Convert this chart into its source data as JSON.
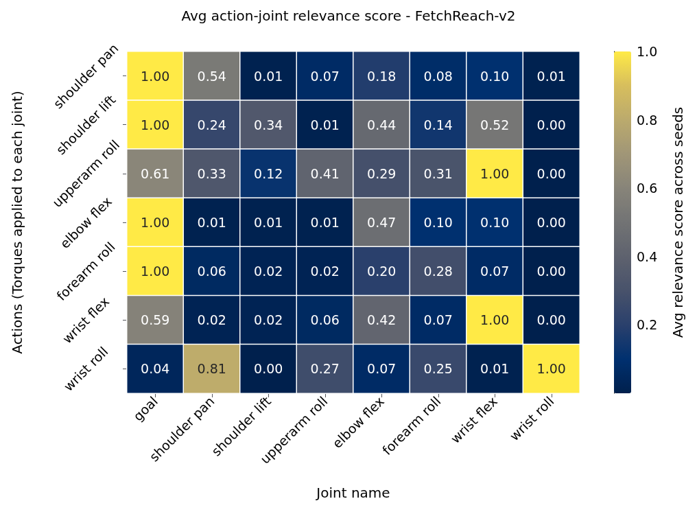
{
  "chart_data": {
    "type": "heatmap",
    "title": "Avg action-joint relevance score - FetchReach-v2",
    "xlabel": "Joint name",
    "ylabel": "Actions (Torques applied to each joint)",
    "clabel": "Avg relevance score across seeds",
    "categories": [
      "goal",
      "shoulder pan",
      "shoulder lift",
      "upperarm roll",
      "elbow flex",
      "forearm roll",
      "wrist flex",
      "wrist roll"
    ],
    "y_categories": [
      "shoulder pan",
      "shoulder lift",
      "upperarm roll",
      "elbow flex",
      "forearm roll",
      "wrist flex",
      "wrist roll"
    ],
    "cells": [
      [
        1.0,
        0.54,
        0.01,
        0.07,
        0.18,
        0.08,
        0.1,
        0.01
      ],
      [
        1.0,
        0.24,
        0.34,
        0.01,
        0.44,
        0.14,
        0.52,
        0.0
      ],
      [
        0.61,
        0.33,
        0.12,
        0.41,
        0.29,
        0.31,
        1.0,
        0.0
      ],
      [
        1.0,
        0.01,
        0.01,
        0.01,
        0.47,
        0.1,
        0.1,
        0.0
      ],
      [
        1.0,
        0.06,
        0.02,
        0.02,
        0.2,
        0.28,
        0.07,
        0.0
      ],
      [
        0.59,
        0.02,
        0.02,
        0.06,
        0.42,
        0.07,
        1.0,
        0.0
      ],
      [
        0.04,
        0.81,
        0.0,
        0.27,
        0.07,
        0.25,
        0.01,
        1.0
      ]
    ],
    "cell_labels": [
      [
        "1.00",
        "0.54",
        "0.01",
        "0.07",
        "0.18",
        "0.08",
        "0.10",
        "0.01"
      ],
      [
        "1.00",
        "0.24",
        "0.34",
        "0.01",
        "0.44",
        "0.14",
        "0.52",
        "0.00"
      ],
      [
        "0.61",
        "0.33",
        "0.12",
        "0.41",
        "0.29",
        "0.31",
        "1.00",
        "0.00"
      ],
      [
        "1.00",
        "0.01",
        "0.01",
        "0.01",
        "0.47",
        "0.10",
        "0.10",
        "0.00"
      ],
      [
        "1.00",
        "0.06",
        "0.02",
        "0.02",
        "0.20",
        "0.28",
        "0.07",
        "0.00"
      ],
      [
        "0.59",
        "0.02",
        "0.02",
        "0.06",
        "0.42",
        "0.07",
        "1.00",
        "0.00"
      ],
      [
        "0.04",
        "0.81",
        "0.00",
        "0.27",
        "0.07",
        "0.25",
        "0.01",
        "1.00"
      ]
    ],
    "clim": [
      0,
      1
    ],
    "cticks": [
      0.2,
      0.4,
      0.6,
      0.8,
      {
        "value": 1,
        "label": "1.0"
      }
    ]
  }
}
